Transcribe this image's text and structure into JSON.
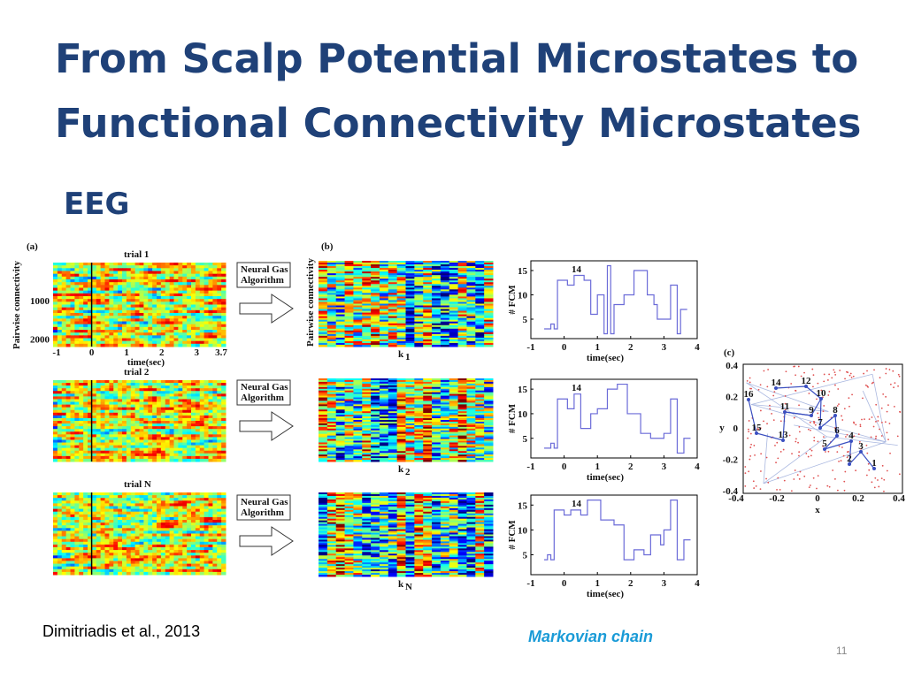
{
  "title": {
    "line1": "From Scalp Potential Microstates to",
    "line2": "Functional Connectivity Microstates"
  },
  "subtitle": "EEG",
  "citation": "Dimitriadis et al., 2013",
  "caption": "Markovian chain",
  "page_number": "11",
  "figure": {
    "panel_a": {
      "label": "(a)",
      "trials": [
        "trial 1",
        "trial 2",
        "trial N"
      ],
      "ylabel": "Pairwise connectivity",
      "ylim": [
        0,
        2200
      ],
      "yticks": [
        1000,
        2000
      ],
      "xlim": [
        -1,
        3.7
      ],
      "xticks": [
        -1,
        0,
        1,
        2,
        3,
        3.7
      ],
      "xlabel": "time(sec)"
    },
    "algorithm": [
      "Neural Gas",
      "Algorithm"
    ],
    "panel_b": {
      "label": "(b)",
      "ylabel": "Pairwise connectivity",
      "klabels": [
        {
          "base": "k",
          "sub": "1"
        },
        {
          "base": "k",
          "sub": "2"
        },
        {
          "base": "k",
          "sub": "N"
        }
      ]
    },
    "fcm": {
      "ylabel": "# FCM",
      "xlabel": "time(sec)",
      "xlim": [
        -1,
        4
      ],
      "ylim": [
        1,
        17
      ],
      "xticks": [
        -1,
        0,
        1,
        2,
        3,
        4
      ],
      "yticks": [
        5,
        10,
        15
      ],
      "annotation": "14",
      "plots": [
        {
          "x": [
            -0.6,
            -0.4,
            -0.3,
            -0.2,
            0.1,
            0.3,
            0.6,
            0.8,
            1.0,
            1.2,
            1.3,
            1.4,
            1.5,
            1.8,
            2.1,
            2.5,
            2.7,
            2.8,
            3.2,
            3.4,
            3.5
          ],
          "values": [
            3,
            4,
            3,
            13,
            12,
            14,
            13,
            6,
            10,
            2,
            16,
            2,
            8,
            10,
            15,
            10,
            8,
            5,
            12,
            2,
            7
          ]
        },
        {
          "x": [
            -0.6,
            -0.4,
            -0.3,
            -0.2,
            0.1,
            0.3,
            0.5,
            0.8,
            1.0,
            1.3,
            1.6,
            1.9,
            2.3,
            2.6,
            3.0,
            3.2,
            3.4,
            3.6
          ],
          "values": [
            3,
            4,
            3,
            13,
            11,
            14,
            7,
            10,
            11,
            15,
            16,
            10,
            6,
            5,
            6,
            13,
            2,
            5
          ]
        },
        {
          "x": [
            -0.6,
            -0.5,
            -0.4,
            -0.3,
            0.0,
            0.2,
            0.5,
            0.7,
            1.1,
            1.5,
            1.8,
            2.1,
            2.4,
            2.6,
            2.9,
            3.0,
            3.2,
            3.4,
            3.6
          ],
          "values": [
            4,
            5,
            4,
            14,
            13,
            14,
            13,
            16,
            12,
            11,
            4,
            6,
            5,
            9,
            7,
            10,
            16,
            4,
            8
          ]
        }
      ]
    },
    "panel_c": {
      "label": "(c)",
      "xlabel": "x",
      "ylabel": "y",
      "xlim": [
        -0.4,
        0.4
      ],
      "ylim": [
        -0.4,
        0.4
      ],
      "xticks": [
        -0.4,
        -0.2,
        0,
        0.2,
        0.4
      ],
      "yticks": [
        -0.4,
        -0.2,
        0,
        0.2,
        0.4
      ],
      "nodes": [
        "1",
        "2",
        "3",
        "4",
        "5",
        "6",
        "7",
        "8",
        "9",
        "10",
        "11",
        "12",
        "13",
        "14",
        "15",
        "16"
      ]
    }
  }
}
